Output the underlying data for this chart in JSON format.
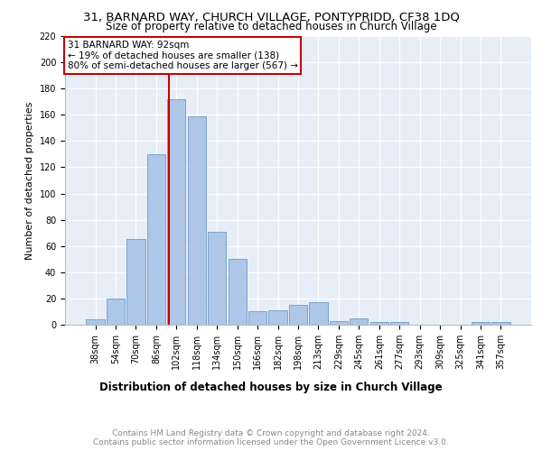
{
  "title": "31, BARNARD WAY, CHURCH VILLAGE, PONTYPRIDD, CF38 1DQ",
  "subtitle": "Size of property relative to detached houses in Church Village",
  "xlabel": "Distribution of detached houses by size in Church Village",
  "ylabel": "Number of detached properties",
  "categories": [
    "38sqm",
    "54sqm",
    "70sqm",
    "86sqm",
    "102sqm",
    "118sqm",
    "134sqm",
    "150sqm",
    "166sqm",
    "182sqm",
    "198sqm",
    "213sqm",
    "229sqm",
    "245sqm",
    "261sqm",
    "277sqm",
    "293sqm",
    "309sqm",
    "325sqm",
    "341sqm",
    "357sqm"
  ],
  "values": [
    4,
    20,
    65,
    130,
    172,
    159,
    71,
    50,
    10,
    11,
    15,
    17,
    3,
    5,
    2,
    2,
    0,
    0,
    0,
    2,
    2
  ],
  "bar_color": "#aec6e8",
  "bar_edge_color": "#5a8fc0",
  "vline_x": 3.62,
  "vline_color": "#cc0000",
  "annotation_text": "31 BARNARD WAY: 92sqm\n← 19% of detached houses are smaller (138)\n80% of semi-detached houses are larger (567) →",
  "annotation_box_color": "#ffffff",
  "annotation_box_edge": "#cc0000",
  "ylim": [
    0,
    220
  ],
  "yticks": [
    0,
    20,
    40,
    60,
    80,
    100,
    120,
    140,
    160,
    180,
    200,
    220
  ],
  "background_color": "#e8eef8",
  "grid_color": "#ffffff",
  "footer_line1": "Contains HM Land Registry data © Crown copyright and database right 2024.",
  "footer_line2": "Contains public sector information licensed under the Open Government Licence v3.0.",
  "title_fontsize": 9.5,
  "subtitle_fontsize": 8.5,
  "xlabel_fontsize": 8.5,
  "ylabel_fontsize": 8,
  "tick_fontsize": 7,
  "footer_fontsize": 6.5,
  "annotation_fontsize": 7.5
}
